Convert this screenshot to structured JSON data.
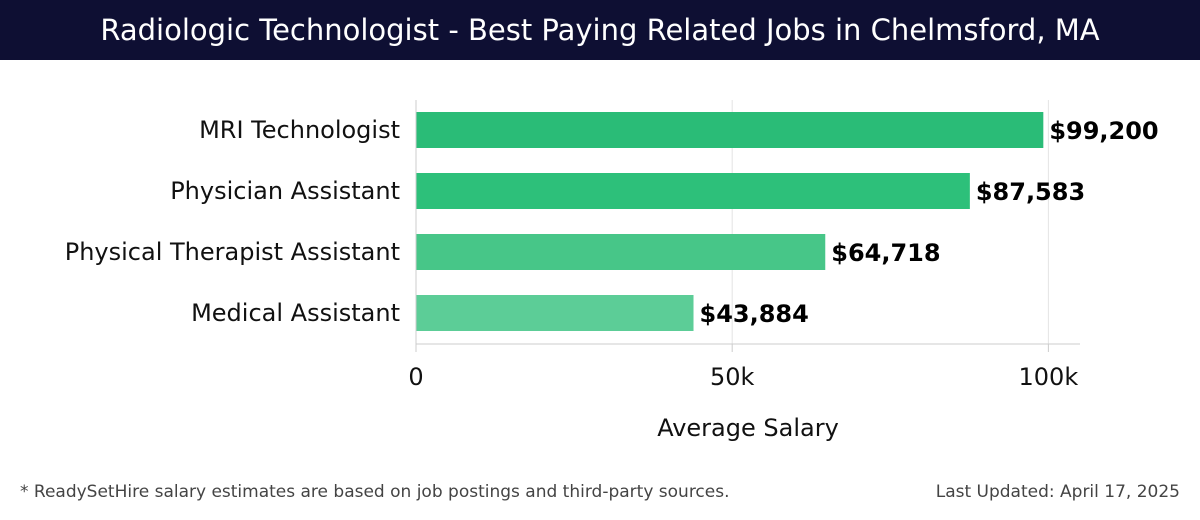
{
  "header": {
    "title": "Radiologic Technologist - Best Paying Related Jobs in Chelmsford, MA"
  },
  "footer": {
    "note": "* ReadySetHire salary estimates are based on job postings and third-party sources.",
    "updated": "Last Updated: April 17, 2025"
  },
  "chart_data": {
    "type": "bar",
    "orientation": "horizontal",
    "title": "Radiologic Technologist - Best Paying Related Jobs in Chelmsford, MA",
    "categories": [
      "MRI Technologist",
      "Physician Assistant",
      "Physical Therapist Assistant",
      "Medical Assistant"
    ],
    "values": [
      99200,
      87583,
      64718,
      43884
    ],
    "value_labels": [
      "$99,200",
      "$87,583",
      "$64,718",
      "$43,884"
    ],
    "bar_colors": [
      "#2abc77",
      "#2dc07a",
      "#47c688",
      "#5ccd97"
    ],
    "xlabel": "Average Salary",
    "ylabel": "",
    "xlim": [
      0,
      105000
    ],
    "xticks": [
      0,
      50000,
      100000
    ],
    "xtick_labels": [
      "0",
      "50k",
      "100k"
    ],
    "grid": true,
    "legend": "none"
  }
}
